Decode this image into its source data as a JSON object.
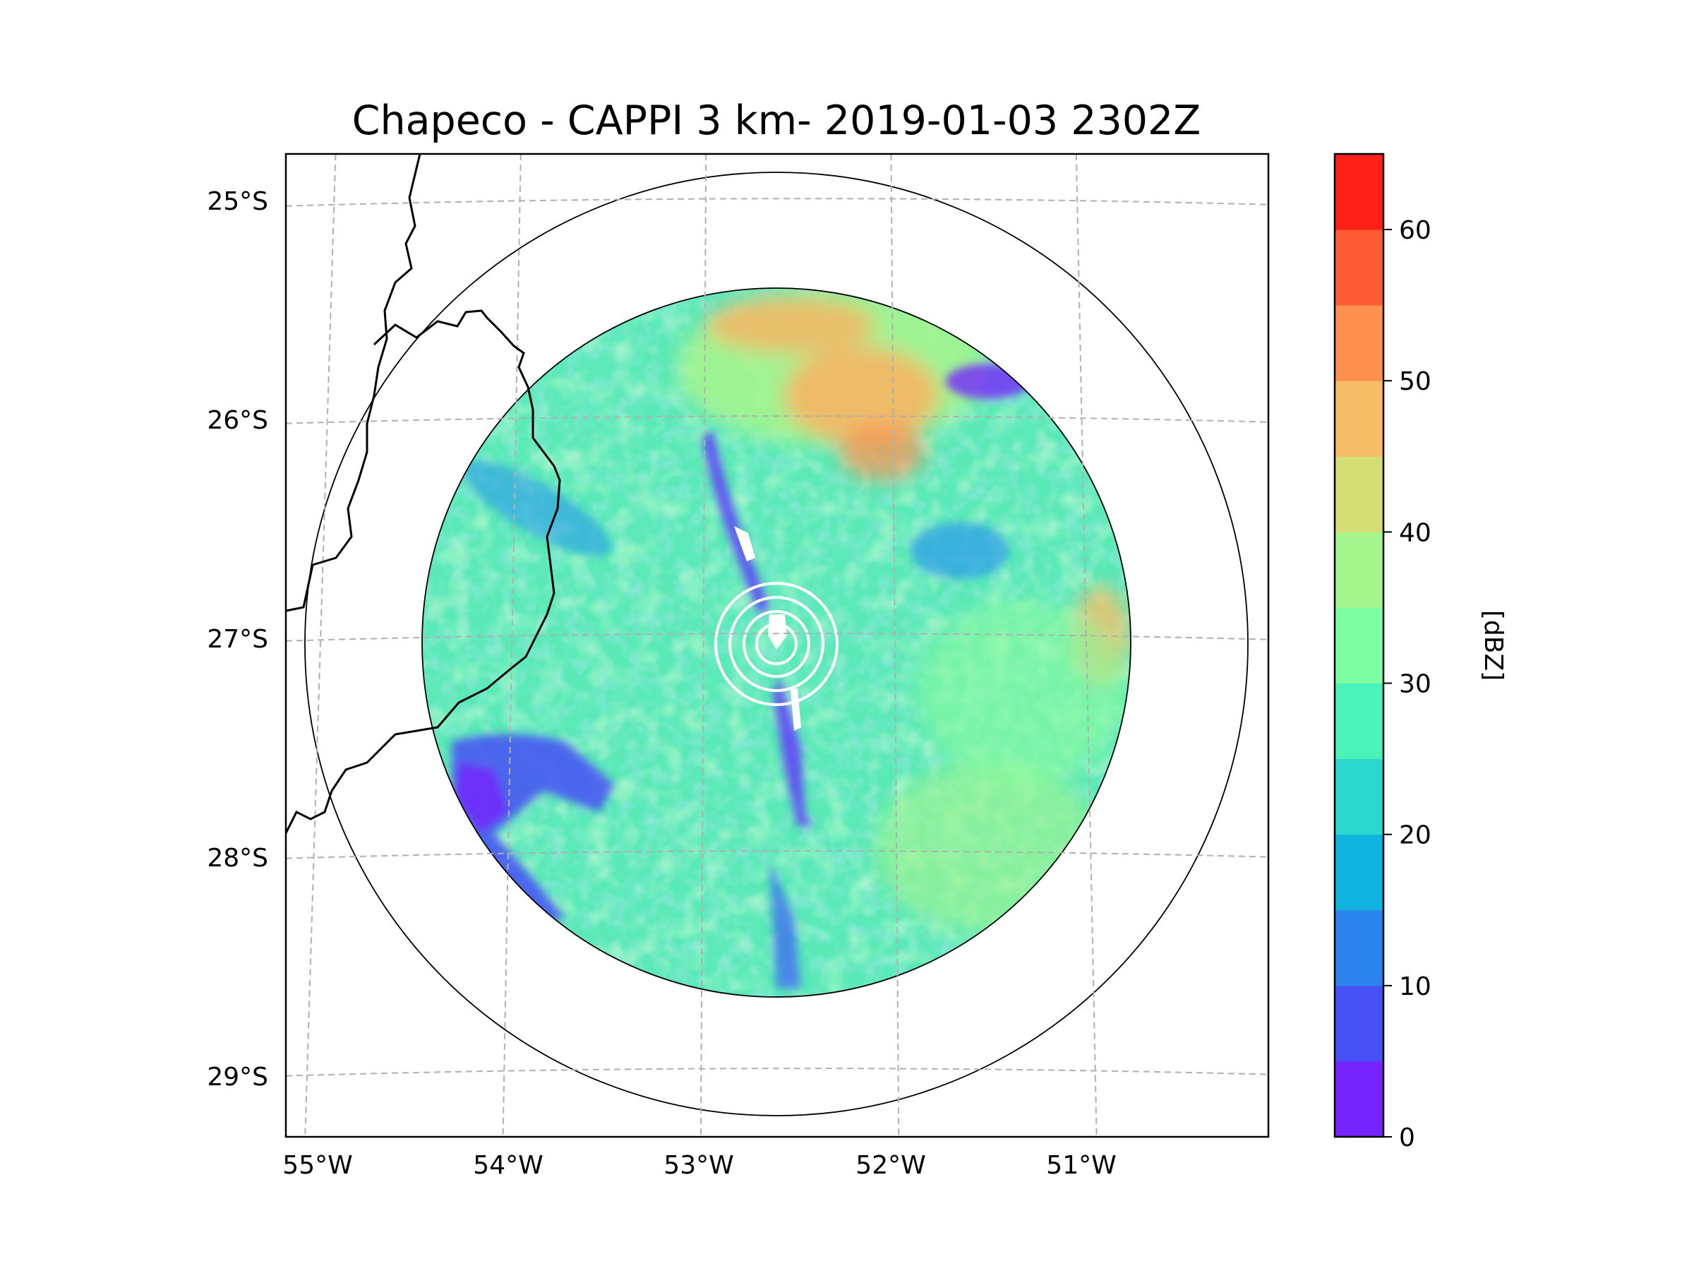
{
  "title": "Chapeco - CAPPI 3 km- 2019-01-03 2302Z",
  "map": {
    "lat_labels": [
      "25°S",
      "26°S",
      "27°S",
      "28°S",
      "29°S"
    ],
    "lon_labels": [
      "55°W",
      "54°W",
      "53°W",
      "52°W",
      "51°W"
    ],
    "lat_values": [
      -25,
      -26,
      -27,
      -28,
      -29
    ],
    "lon_values": [
      -55,
      -54,
      -53,
      -52,
      -51
    ],
    "extent": {
      "lon_min": -55.18,
      "lon_max": -50.05,
      "lat_min": -29.3,
      "lat_max": -24.78
    },
    "radar_site": {
      "name": "Chapeco",
      "lon": -52.6,
      "lat": -27.02
    },
    "range_rings_km": [
      250,
      400
    ],
    "gridlines": true,
    "grid_style": "dashed grey",
    "coastline_color": "#000000"
  },
  "colorbar": {
    "label": "[dBZ]",
    "ticks": [
      "0",
      "10",
      "20",
      "30",
      "40",
      "50",
      "60"
    ],
    "tick_values": [
      0,
      10,
      20,
      30,
      40,
      50,
      60
    ],
    "min": 0,
    "max": 65,
    "step": 5,
    "colors": [
      "#7424fd",
      "#4650f5",
      "#2a84eb",
      "#10b3dd",
      "#2ad8cd",
      "#4bf2ba",
      "#7efea2",
      "#a3f58c",
      "#d5de75",
      "#f5bd66",
      "#ff9050",
      "#ff5c33",
      "#ff2119"
    ]
  },
  "chart_data": {
    "type": "heatmap",
    "title": "Chapeco - CAPPI 3 km- 2019-01-03 2302Z",
    "xlabel": "",
    "ylabel": "",
    "x_ticks": [
      "55°W",
      "54°W",
      "53°W",
      "52°W",
      "51°W"
    ],
    "y_ticks": [
      "25°S",
      "26°S",
      "27°S",
      "28°S",
      "29°S"
    ],
    "xlim": [
      -55.18,
      -50.05
    ],
    "ylim": [
      -29.3,
      -24.78
    ],
    "colorbar_label": "[dBZ]",
    "colorbar_range": [
      0,
      65
    ],
    "dominant_values_dbz": [
      25,
      35
    ],
    "max_values_dbz": [
      50,
      55
    ],
    "min_values_dbz": [
      0,
      10
    ]
  }
}
